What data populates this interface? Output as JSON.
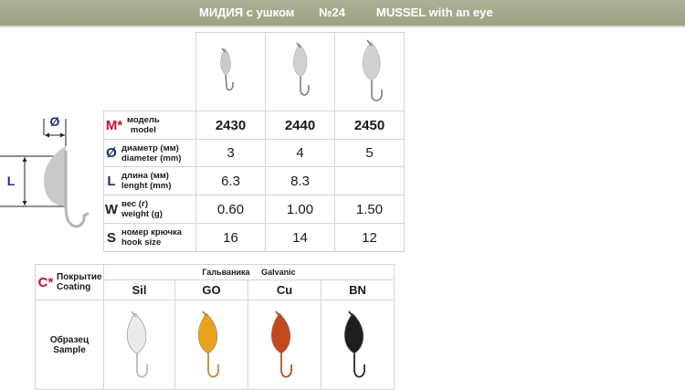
{
  "header": {
    "title_ru": "МИДИЯ с ушком",
    "number": "№24",
    "title_en": "MUSSEL with an eye"
  },
  "colors": {
    "header_bg": "#aaa88b",
    "accent_red": "#c8102e",
    "accent_blue": "#1f2f6e"
  },
  "diagram": {
    "diameter_symbol": "Ø",
    "length_symbol": "L"
  },
  "specs": {
    "rows": [
      {
        "symbol": "M*",
        "label_ru": "модель",
        "label_en": "model",
        "values": [
          "2430",
          "2440",
          "2450"
        ]
      },
      {
        "symbol": "Ø",
        "label_ru": "диаметр (мм)",
        "label_en": "diameter (mm)",
        "values": [
          "3",
          "4",
          "5"
        ]
      },
      {
        "symbol": "L",
        "label_ru": "длина (мм)",
        "label_en": "lenght (mm)",
        "values": [
          "6.3",
          "8.3",
          ""
        ]
      },
      {
        "symbol": "W",
        "label_ru": "вес (г)",
        "label_en": "weight (g)",
        "values": [
          "0.60",
          "1.00",
          "1.50"
        ]
      },
      {
        "symbol": "S",
        "label_ru": "номер крючка",
        "label_en": "hook size",
        "values": [
          "16",
          "14",
          "12"
        ]
      }
    ]
  },
  "coating": {
    "symbol": "C*",
    "label_ru": "Покрытие",
    "label_en": "Coating",
    "group_ru": "Гальваника",
    "group_en": "Galvanic",
    "types": [
      "Sil",
      "GO",
      "Cu",
      "BN"
    ],
    "sample_ru": "Образец",
    "sample_en": "Sample",
    "sample_colors": [
      "#e9ecec",
      "#e8a21c",
      "#c4481e",
      "#1e1e1e"
    ],
    "hook_colors": [
      "#b8b8b0",
      "#c0892a",
      "#b5502a",
      "#2a2a2a"
    ]
  }
}
